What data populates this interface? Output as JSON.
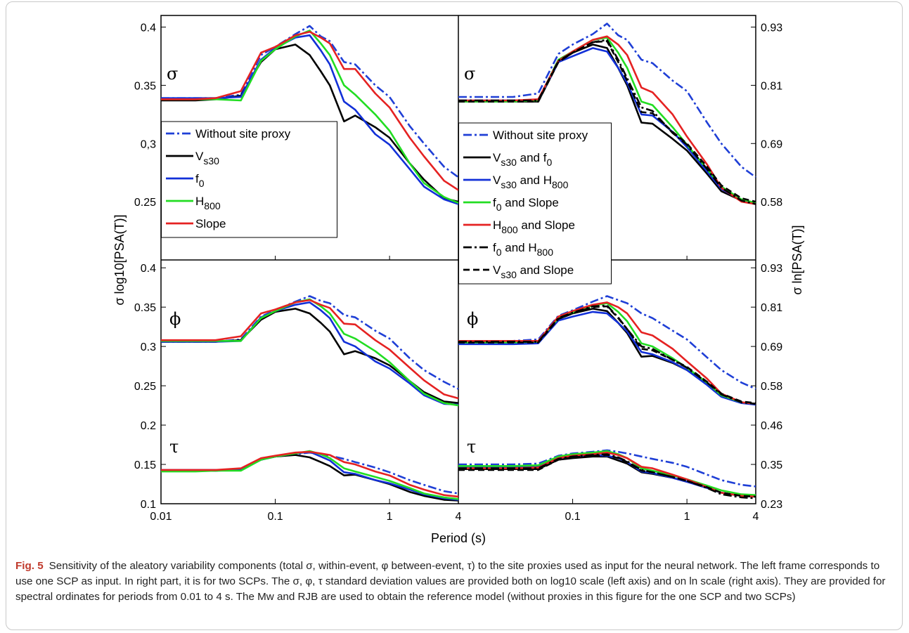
{
  "caption": {
    "label": "Fig. 5",
    "text": "Sensitivity of the aleatory variability components (total σ, within-event, φ between-event, τ) to the site proxies used as input for the neural network. The left frame corresponds to use one SCP as input. In right part, it is for two SCPs. The σ, φ, τ standard deviation values are provided both on log10 scale (left axis) and on ln scale (right axis). They are provided for spectral ordinates for periods from 0.01 to 4 s. The Mw and RJB are used to obtain the reference model (without proxies in this figure for the one SCP and two SCPs)"
  },
  "chart_data": {
    "type": "line",
    "xlabel": "Period (s)",
    "ylabel_left": "σ log10[PSA(T)]",
    "ylabel_right": "σ ln[PSA(T)]",
    "x_scale": "log",
    "xlim": [
      0.01,
      4
    ],
    "x_tick_labels": [
      "0.01",
      "0.1",
      "1",
      "4"
    ],
    "period": [
      0.01,
      0.02,
      0.03,
      0.05,
      0.075,
      0.1,
      0.15,
      0.2,
      0.25,
      0.3,
      0.4,
      0.5,
      0.75,
      1,
      1.5,
      2,
      3,
      4
    ],
    "top_ylim": [
      0.2,
      0.41
    ],
    "top_left_ticks": [
      "0.4",
      "0.35",
      "0,3",
      "0.25"
    ],
    "top_right_ticks": [
      "0.93",
      "0.81",
      "0.69",
      "0.58"
    ],
    "bottom_ylim": [
      0.1,
      0.41
    ],
    "bottom_left_ticks": [
      "0.4",
      "0.35",
      "0.3",
      "0.25",
      "0.2",
      "0.15",
      "0.1"
    ],
    "bottom_right_ticks": [
      "0.93",
      "0.81",
      "0.69",
      "0.58",
      "0.46",
      "0.35",
      "0.23"
    ],
    "panels": [
      {
        "id": "one-scp",
        "sigma_symbol": "σ",
        "phi_symbol": "ϕ",
        "tau_symbol": "τ",
        "legend": [
          {
            "label": "Without site proxy"
          },
          {
            "label": "V",
            "sub": "s30"
          },
          {
            "label": "f",
            "sub": "0"
          },
          {
            "label": "H",
            "sub": "800"
          },
          {
            "label": "Slope"
          }
        ],
        "series": [
          {
            "name": "Without site proxy",
            "color": "#1f3fd6",
            "dash": "dashdot",
            "sigma": [
              0.339,
              0.339,
              0.339,
              0.342,
              0.376,
              0.383,
              0.394,
              0.401,
              0.392,
              0.388,
              0.37,
              0.368,
              0.35,
              0.34,
              0.315,
              0.3,
              0.28,
              0.271
            ],
            "phi": [
              0.306,
              0.306,
              0.306,
              0.309,
              0.338,
              0.346,
              0.357,
              0.364,
              0.358,
              0.355,
              0.34,
              0.337,
              0.32,
              0.31,
              0.285,
              0.27,
              0.255,
              0.246
            ],
            "tau": [
              0.142,
              0.142,
              0.142,
              0.144,
              0.156,
              0.16,
              0.163,
              0.165,
              0.163,
              0.161,
              0.157,
              0.153,
              0.146,
              0.14,
              0.13,
              0.124,
              0.116,
              0.113
            ]
          },
          {
            "name": "Vs30",
            "color": "#000000",
            "dash": "solid",
            "sigma": [
              0.337,
              0.337,
              0.338,
              0.341,
              0.37,
              0.381,
              0.385,
              0.376,
              0.362,
              0.35,
              0.319,
              0.324,
              0.314,
              0.305,
              0.283,
              0.269,
              0.253,
              0.25
            ],
            "phi": [
              0.306,
              0.306,
              0.306,
              0.308,
              0.334,
              0.344,
              0.348,
              0.342,
              0.33,
              0.319,
              0.29,
              0.294,
              0.285,
              0.276,
              0.256,
              0.242,
              0.23,
              0.228
            ],
            "tau": [
              0.142,
              0.142,
              0.142,
              0.143,
              0.156,
              0.16,
              0.162,
              0.159,
              0.153,
              0.148,
              0.136,
              0.137,
              0.13,
              0.125,
              0.115,
              0.11,
              0.105,
              0.104
            ]
          },
          {
            "name": "f0",
            "color": "#1230d8",
            "dash": "solid",
            "sigma": [
              0.339,
              0.339,
              0.339,
              0.34,
              0.372,
              0.382,
              0.391,
              0.393,
              0.38,
              0.368,
              0.336,
              0.329,
              0.308,
              0.299,
              0.278,
              0.263,
              0.252,
              0.248
            ],
            "phi": [
              0.306,
              0.306,
              0.306,
              0.307,
              0.337,
              0.345,
              0.353,
              0.356,
              0.346,
              0.336,
              0.306,
              0.3,
              0.281,
              0.272,
              0.253,
              0.238,
              0.227,
              0.226
            ],
            "tau": [
              0.143,
              0.143,
              0.143,
              0.143,
              0.156,
              0.16,
              0.164,
              0.166,
              0.16,
              0.155,
              0.14,
              0.138,
              0.13,
              0.126,
              0.118,
              0.112,
              0.107,
              0.105
            ]
          },
          {
            "name": "H800",
            "color": "#22dd22",
            "dash": "solid",
            "sigma": [
              0.338,
              0.338,
              0.338,
              0.337,
              0.371,
              0.381,
              0.392,
              0.397,
              0.386,
              0.376,
              0.35,
              0.342,
              0.325,
              0.311,
              0.283,
              0.266,
              0.254,
              0.249
            ],
            "phi": [
              0.307,
              0.307,
              0.307,
              0.307,
              0.336,
              0.345,
              0.356,
              0.36,
              0.351,
              0.342,
              0.316,
              0.31,
              0.294,
              0.28,
              0.256,
              0.24,
              0.228,
              0.225
            ],
            "tau": [
              0.141,
              0.141,
              0.142,
              0.142,
              0.156,
              0.16,
              0.164,
              0.167,
              0.163,
              0.158,
              0.145,
              0.141,
              0.134,
              0.129,
              0.12,
              0.113,
              0.108,
              0.106
            ]
          },
          {
            "name": "Slope",
            "color": "#e52222",
            "dash": "solid",
            "sigma": [
              0.338,
              0.338,
              0.339,
              0.345,
              0.378,
              0.383,
              0.393,
              0.396,
              0.391,
              0.386,
              0.364,
              0.364,
              0.343,
              0.331,
              0.305,
              0.289,
              0.268,
              0.26
            ],
            "phi": [
              0.308,
              0.308,
              0.308,
              0.313,
              0.342,
              0.347,
              0.356,
              0.359,
              0.353,
              0.349,
              0.329,
              0.328,
              0.308,
              0.296,
              0.273,
              0.257,
              0.239,
              0.234
            ],
            "tau": [
              0.143,
              0.143,
              0.143,
              0.145,
              0.158,
              0.161,
              0.165,
              0.166,
              0.164,
              0.162,
              0.153,
              0.15,
              0.141,
              0.136,
              0.124,
              0.118,
              0.111,
              0.109
            ]
          }
        ]
      },
      {
        "id": "two-scps",
        "sigma_symbol": "σ",
        "phi_symbol": "ϕ",
        "tau_symbol": "τ",
        "legend": [
          {
            "label": "Without site proxy"
          },
          {
            "label": "V",
            "sub": "s30",
            "label2": " and f",
            "sub2": "0"
          },
          {
            "label": "V",
            "sub": "s30",
            "label2": " and H",
            "sub2": "800"
          },
          {
            "label": "f",
            "sub": "0",
            "label2": " and Slope"
          },
          {
            "label": "H",
            "sub": "800",
            "label2": " and Slope"
          },
          {
            "label": "f",
            "sub": "0",
            "label2": " and H",
            "sub2": "800"
          },
          {
            "label": "V",
            "sub": "s30",
            "label2": " and Slope"
          }
        ],
        "series": [
          {
            "name": "Without site proxy",
            "color": "#1f3fd6",
            "dash": "dashdot",
            "sigma": [
              0.34,
              0.34,
              0.34,
              0.343,
              0.377,
              0.385,
              0.394,
              0.403,
              0.393,
              0.389,
              0.372,
              0.369,
              0.354,
              0.345,
              0.318,
              0.3,
              0.28,
              0.271
            ],
            "phi": [
              0.307,
              0.307,
              0.307,
              0.309,
              0.339,
              0.346,
              0.357,
              0.364,
              0.359,
              0.355,
              0.342,
              0.336,
              0.32,
              0.309,
              0.286,
              0.27,
              0.254,
              0.246
            ],
            "tau": [
              0.15,
              0.15,
              0.15,
              0.151,
              0.161,
              0.164,
              0.166,
              0.168,
              0.166,
              0.164,
              0.16,
              0.157,
              0.152,
              0.147,
              0.137,
              0.13,
              0.124,
              0.122
            ]
          },
          {
            "name": "Vs30 and f0",
            "color": "#000000",
            "dash": "solid",
            "sigma": [
              0.336,
              0.336,
              0.336,
              0.336,
              0.37,
              0.378,
              0.385,
              0.382,
              0.365,
              0.35,
              0.318,
              0.317,
              0.304,
              0.294,
              0.274,
              0.259,
              0.251,
              0.248
            ],
            "phi": [
              0.305,
              0.305,
              0.305,
              0.305,
              0.335,
              0.342,
              0.348,
              0.345,
              0.33,
              0.317,
              0.287,
              0.288,
              0.279,
              0.27,
              0.252,
              0.238,
              0.229,
              0.226
            ],
            "tau": [
              0.144,
              0.144,
              0.144,
              0.144,
              0.156,
              0.158,
              0.16,
              0.16,
              0.155,
              0.151,
              0.14,
              0.138,
              0.133,
              0.128,
              0.121,
              0.114,
              0.11,
              0.11
            ]
          },
          {
            "name": "Vs30 and H800",
            "color": "#1230d8",
            "dash": "solid",
            "sigma": [
              0.337,
              0.337,
              0.337,
              0.337,
              0.37,
              0.375,
              0.382,
              0.379,
              0.365,
              0.352,
              0.325,
              0.324,
              0.31,
              0.297,
              0.276,
              0.261,
              0.251,
              0.248
            ],
            "phi": [
              0.303,
              0.303,
              0.303,
              0.304,
              0.333,
              0.338,
              0.344,
              0.342,
              0.33,
              0.319,
              0.293,
              0.29,
              0.28,
              0.27,
              0.251,
              0.236,
              0.228,
              0.226
            ],
            "tau": [
              0.146,
              0.146,
              0.146,
              0.147,
              0.158,
              0.16,
              0.162,
              0.161,
              0.158,
              0.153,
              0.141,
              0.139,
              0.133,
              0.128,
              0.12,
              0.114,
              0.11,
              0.109
            ]
          },
          {
            "name": "f0 and Slope",
            "color": "#22dd22",
            "dash": "solid",
            "sigma": [
              0.336,
              0.336,
              0.336,
              0.337,
              0.372,
              0.379,
              0.389,
              0.391,
              0.378,
              0.365,
              0.336,
              0.333,
              0.314,
              0.299,
              0.278,
              0.263,
              0.252,
              0.249
            ],
            "phi": [
              0.305,
              0.305,
              0.305,
              0.306,
              0.336,
              0.343,
              0.352,
              0.355,
              0.344,
              0.332,
              0.304,
              0.3,
              0.285,
              0.273,
              0.254,
              0.238,
              0.229,
              0.227
            ],
            "tau": [
              0.148,
              0.148,
              0.148,
              0.149,
              0.16,
              0.163,
              0.165,
              0.167,
              0.163,
              0.158,
              0.145,
              0.142,
              0.136,
              0.131,
              0.123,
              0.117,
              0.112,
              0.111
            ]
          },
          {
            "name": "H800 and Slope",
            "color": "#e52222",
            "dash": "solid",
            "sigma": [
              0.337,
              0.337,
              0.337,
              0.338,
              0.371,
              0.379,
              0.389,
              0.392,
              0.385,
              0.376,
              0.348,
              0.344,
              0.325,
              0.306,
              0.282,
              0.262,
              0.25,
              0.248
            ],
            "phi": [
              0.307,
              0.307,
              0.307,
              0.307,
              0.338,
              0.345,
              0.353,
              0.356,
              0.35,
              0.342,
              0.318,
              0.314,
              0.297,
              0.281,
              0.259,
              0.24,
              0.229,
              0.227
            ],
            "tau": [
              0.145,
              0.145,
              0.145,
              0.146,
              0.158,
              0.161,
              0.163,
              0.165,
              0.162,
              0.158,
              0.147,
              0.145,
              0.137,
              0.131,
              0.121,
              0.114,
              0.11,
              0.109
            ]
          },
          {
            "name": "f0 and H800",
            "color": "#000000",
            "dash": "dashdot",
            "sigma": [
              0.337,
              0.337,
              0.337,
              0.337,
              0.371,
              0.378,
              0.387,
              0.389,
              0.372,
              0.356,
              0.331,
              0.328,
              0.309,
              0.299,
              0.278,
              0.262,
              0.251,
              0.248
            ],
            "phi": [
              0.306,
              0.306,
              0.306,
              0.306,
              0.336,
              0.343,
              0.351,
              0.352,
              0.337,
              0.322,
              0.3,
              0.297,
              0.283,
              0.273,
              0.254,
              0.239,
              0.229,
              0.227
            ],
            "tau": [
              0.145,
              0.145,
              0.145,
              0.145,
              0.157,
              0.16,
              0.162,
              0.163,
              0.159,
              0.154,
              0.143,
              0.14,
              0.134,
              0.129,
              0.12,
              0.112,
              0.108,
              0.107
            ]
          },
          {
            "name": "Vs30 and Slope",
            "color": "#000000",
            "dash": "dash",
            "sigma": [
              0.336,
              0.336,
              0.336,
              0.336,
              0.37,
              0.378,
              0.387,
              0.388,
              0.37,
              0.354,
              0.327,
              0.326,
              0.31,
              0.3,
              0.28,
              0.264,
              0.253,
              0.25
            ],
            "phi": [
              0.305,
              0.305,
              0.305,
              0.305,
              0.335,
              0.342,
              0.35,
              0.351,
              0.336,
              0.322,
              0.297,
              0.295,
              0.283,
              0.274,
              0.255,
              0.24,
              0.23,
              0.228
            ],
            "tau": [
              0.143,
              0.143,
              0.143,
              0.143,
              0.156,
              0.159,
              0.161,
              0.162,
              0.158,
              0.153,
              0.142,
              0.14,
              0.134,
              0.129,
              0.121,
              0.114,
              0.11,
              0.109
            ]
          }
        ]
      }
    ]
  }
}
